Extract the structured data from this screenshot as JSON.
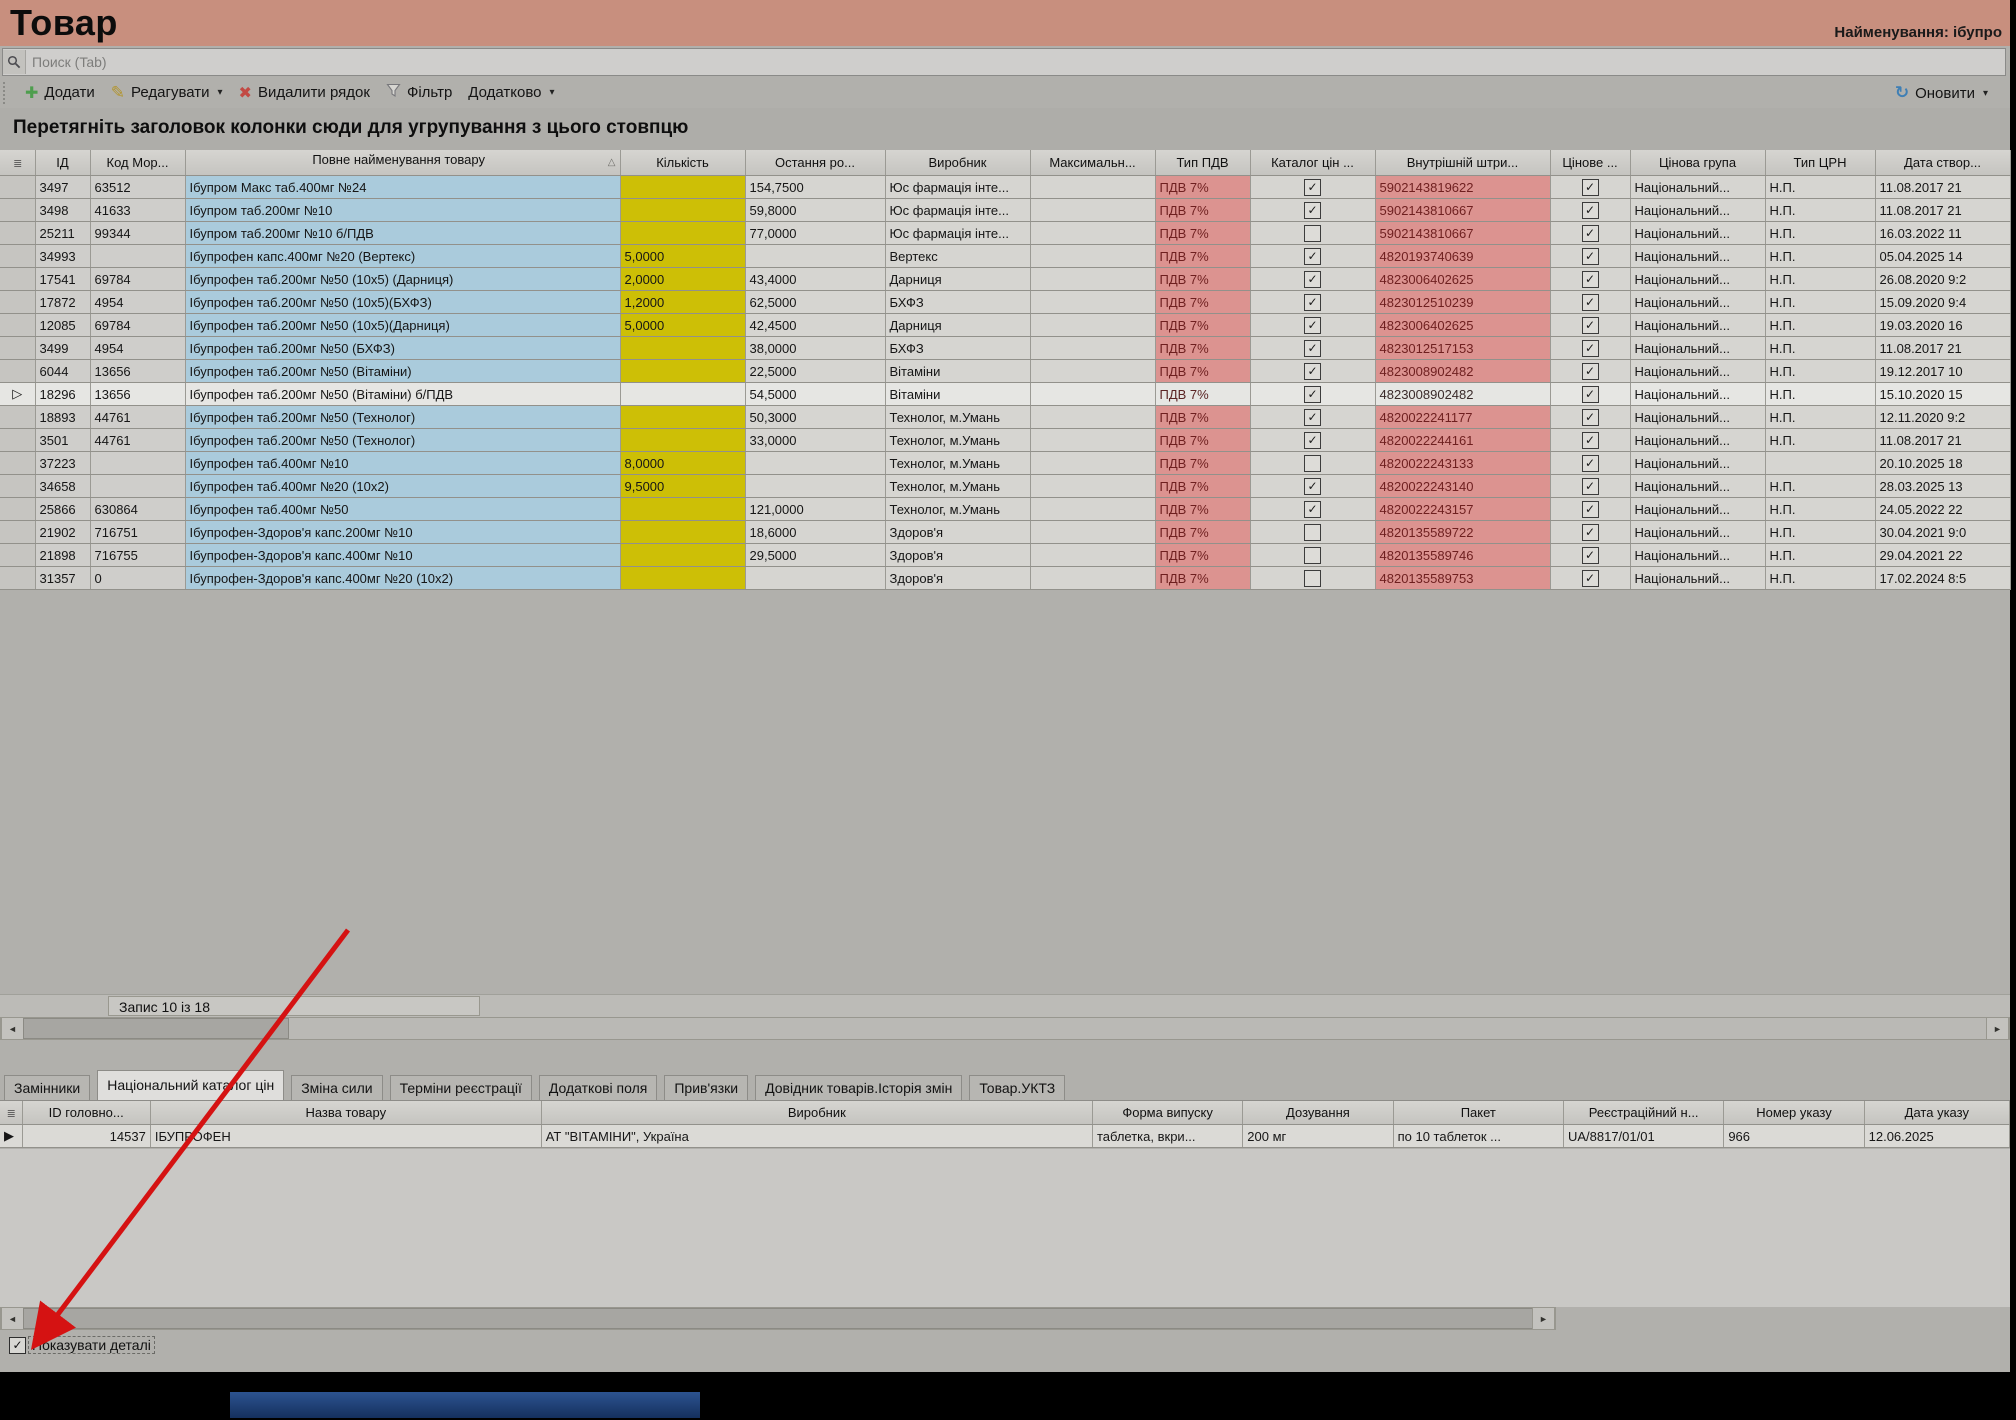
{
  "window": {
    "title": "Товар",
    "name_filter_label": "Найменування: ібупро"
  },
  "search": {
    "placeholder": "Поиск (Tab)"
  },
  "toolbar": {
    "add": "Додати",
    "edit": "Редагувати",
    "delete_row": "Видалити рядок",
    "filter": "Фільтр",
    "more": "Додатково",
    "refresh": "Оновити"
  },
  "group_hint": "Перетягніть заголовок колонки сюди для угрупування з цього стовпцю",
  "main_grid": {
    "columns": [
      "ІД",
      "Код Мор...",
      "Повне найменування товару",
      "Кількість",
      "Остання ро...",
      "Виробник",
      "Максимальн...",
      "Тип ПДВ",
      "Каталог цін ...",
      "Внутрішній штри...",
      "Цінове ...",
      "Цінова група",
      "Тип ЦРН",
      "Дата створ..."
    ],
    "rows": [
      {
        "id": "3497",
        "code": "63512",
        "name": "Ібупром Макс таб.400мг №24",
        "qty": "",
        "last_price": "154,7500",
        "maker": "Юс фармація інте...",
        "max": "",
        "vat": "ПДВ 7%",
        "catalog": true,
        "barcode": "5902143819622",
        "price_flag": true,
        "price_group": "Національний...",
        "crn_type": "Н.П.",
        "created": "11.08.2017 21",
        "selected": false
      },
      {
        "id": "3498",
        "code": "41633",
        "name": "Ібупром таб.200мг №10",
        "qty": "",
        "last_price": "59,8000",
        "maker": "Юс фармація інте...",
        "max": "",
        "vat": "ПДВ 7%",
        "catalog": true,
        "barcode": "5902143810667",
        "price_flag": true,
        "price_group": "Національний...",
        "crn_type": "Н.П.",
        "created": "11.08.2017 21",
        "selected": false
      },
      {
        "id": "25211",
        "code": "99344",
        "name": "Ібупром таб.200мг №10  б/ПДВ",
        "qty": "",
        "last_price": "77,0000",
        "maker": "Юс фармація інте...",
        "max": "",
        "vat": "ПДВ 7%",
        "catalog": false,
        "barcode": "5902143810667",
        "price_flag": true,
        "price_group": "Національний...",
        "crn_type": "Н.П.",
        "created": "16.03.2022 11",
        "selected": false
      },
      {
        "id": "34993",
        "code": "",
        "name": "Ібупрофен капс.400мг №20 (Вертекс)",
        "qty": "5,0000",
        "last_price": "",
        "maker": "Вертекс",
        "max": "",
        "vat": "ПДВ 7%",
        "catalog": true,
        "barcode": "4820193740639",
        "price_flag": true,
        "price_group": "Національний...",
        "crn_type": "Н.П.",
        "created": "05.04.2025 14",
        "selected": false
      },
      {
        "id": "17541",
        "code": "69784",
        "name": "Ібупрофен таб.200мг №50 (10х5) (Дарниця)",
        "qty": "2,0000",
        "last_price": "43,4000",
        "maker": "Дарниця",
        "max": "",
        "vat": "ПДВ 7%",
        "catalog": true,
        "barcode": "4823006402625",
        "price_flag": true,
        "price_group": "Національний...",
        "crn_type": "Н.П.",
        "created": "26.08.2020 9:2",
        "selected": false
      },
      {
        "id": "17872",
        "code": "4954",
        "name": "Ібупрофен таб.200мг №50 (10х5)(БХФЗ)",
        "qty": "1,2000",
        "last_price": "62,5000",
        "maker": "БХФЗ",
        "max": "",
        "vat": "ПДВ 7%",
        "catalog": true,
        "barcode": "4823012510239",
        "price_flag": true,
        "price_group": "Національний...",
        "crn_type": "Н.П.",
        "created": "15.09.2020 9:4",
        "selected": false
      },
      {
        "id": "12085",
        "code": "69784",
        "name": "Ібупрофен таб.200мг №50 (10х5)(Дарниця)",
        "qty": "5,0000",
        "last_price": "42,4500",
        "maker": "Дарниця",
        "max": "",
        "vat": "ПДВ 7%",
        "catalog": true,
        "barcode": "4823006402625",
        "price_flag": true,
        "price_group": "Національний...",
        "crn_type": "Н.П.",
        "created": "19.03.2020 16",
        "selected": false
      },
      {
        "id": "3499",
        "code": "4954",
        "name": "Ібупрофен таб.200мг №50 (БХФЗ)",
        "qty": "",
        "last_price": "38,0000",
        "maker": "БХФЗ",
        "max": "",
        "vat": "ПДВ 7%",
        "catalog": true,
        "barcode": "4823012517153",
        "price_flag": true,
        "price_group": "Національний...",
        "crn_type": "Н.П.",
        "created": "11.08.2017 21",
        "selected": false
      },
      {
        "id": "6044",
        "code": "13656",
        "name": "Ібупрофен таб.200мг №50 (Вітаміни)",
        "qty": "",
        "last_price": "22,5000",
        "maker": "Вітаміни",
        "max": "",
        "vat": "ПДВ 7%",
        "catalog": true,
        "barcode": "4823008902482",
        "price_flag": true,
        "price_group": "Національний...",
        "crn_type": "Н.П.",
        "created": "19.12.2017 10",
        "selected": false
      },
      {
        "id": "18296",
        "code": "13656",
        "name": "Ібупрофен таб.200мг №50 (Вітаміни) б/ПДВ",
        "qty": "",
        "last_price": "54,5000",
        "maker": "Вітаміни",
        "max": "",
        "vat": "ПДВ 7%",
        "catalog": true,
        "barcode": "4823008902482",
        "price_flag": true,
        "price_group": "Національний...",
        "crn_type": "Н.П.",
        "created": "15.10.2020 15",
        "selected": true
      },
      {
        "id": "18893",
        "code": "44761",
        "name": "Ібупрофен таб.200мг №50 (Технолог)",
        "qty": "",
        "last_price": "50,3000",
        "maker": "Технолог, м.Умань",
        "max": "",
        "vat": "ПДВ 7%",
        "catalog": true,
        "barcode": "4820022241177",
        "price_flag": true,
        "price_group": "Національний...",
        "crn_type": "Н.П.",
        "created": "12.11.2020 9:2",
        "selected": false
      },
      {
        "id": "3501",
        "code": "44761",
        "name": "Ібупрофен таб.200мг №50 (Технолог)",
        "qty": "",
        "last_price": "33,0000",
        "maker": "Технолог, м.Умань",
        "max": "",
        "vat": "ПДВ 7%",
        "catalog": true,
        "barcode": "4820022244161",
        "price_flag": true,
        "price_group": "Національний...",
        "crn_type": "Н.П.",
        "created": "11.08.2017 21",
        "selected": false
      },
      {
        "id": "37223",
        "code": "",
        "name": "Ібупрофен таб.400мг №10",
        "qty": "8,0000",
        "last_price": "",
        "maker": "Технолог, м.Умань",
        "max": "",
        "vat": "ПДВ 7%",
        "catalog": false,
        "barcode": "4820022243133",
        "price_flag": true,
        "price_group": "Національний...",
        "crn_type": "",
        "created": "20.10.2025 18",
        "selected": false
      },
      {
        "id": "34658",
        "code": "",
        "name": "Ібупрофен таб.400мг №20 (10х2)",
        "qty": "9,5000",
        "last_price": "",
        "maker": "Технолог, м.Умань",
        "max": "",
        "vat": "ПДВ 7%",
        "catalog": true,
        "barcode": "4820022243140",
        "price_flag": true,
        "price_group": "Національний...",
        "crn_type": "Н.П.",
        "created": "28.03.2025 13",
        "selected": false
      },
      {
        "id": "25866",
        "code": "630864",
        "name": "Ібупрофен таб.400мг №50",
        "qty": "",
        "last_price": "121,0000",
        "maker": "Технолог, м.Умань",
        "max": "",
        "vat": "ПДВ 7%",
        "catalog": true,
        "barcode": "4820022243157",
        "price_flag": true,
        "price_group": "Національний...",
        "crn_type": "Н.П.",
        "created": "24.05.2022 22",
        "selected": false
      },
      {
        "id": "21902",
        "code": "716751",
        "name": "Ібупрофен-Здоров'я капс.200мг №10",
        "qty": "",
        "last_price": "18,6000",
        "maker": "Здоров'я",
        "max": "",
        "vat": "ПДВ 7%",
        "catalog": false,
        "barcode": "4820135589722",
        "price_flag": true,
        "price_group": "Національний...",
        "crn_type": "Н.П.",
        "created": "30.04.2021 9:0",
        "selected": false
      },
      {
        "id": "21898",
        "code": "716755",
        "name": "Ібупрофен-Здоров'я капс.400мг №10",
        "qty": "",
        "last_price": "29,5000",
        "maker": "Здоров'я",
        "max": "",
        "vat": "ПДВ 7%",
        "catalog": false,
        "barcode": "4820135589746",
        "price_flag": true,
        "price_group": "Національний...",
        "crn_type": "Н.П.",
        "created": "29.04.2021 22",
        "selected": false
      },
      {
        "id": "31357",
        "code": "0",
        "name": "Ібупрофен-Здоров'я капс.400мг №20 (10х2)",
        "qty": "",
        "last_price": "",
        "maker": "Здоров'я",
        "max": "",
        "vat": "ПДВ 7%",
        "catalog": false,
        "barcode": "4820135589753",
        "price_flag": true,
        "price_group": "Національний...",
        "crn_type": "Н.П.",
        "created": "17.02.2024 8:5",
        "selected": false
      }
    ],
    "status": "Запис 10 із 18"
  },
  "detail_tabs": [
    {
      "label": "Замінники",
      "active": false
    },
    {
      "label": "Національний каталог цін",
      "active": true
    },
    {
      "label": "Зміна сили",
      "active": false
    },
    {
      "label": "Терміни реєстрації",
      "active": false
    },
    {
      "label": "Додаткові поля",
      "active": false
    },
    {
      "label": "Прив'язки",
      "active": false
    },
    {
      "label": "Довідник товарів.Історія змін",
      "active": false
    },
    {
      "label": "Товар.УКТЗ",
      "active": false
    }
  ],
  "detail_grid": {
    "columns": [
      "ID головно...",
      "Назва товару",
      "Виробник",
      "Форма випуску",
      "Дозування",
      "Пакет",
      "Реєстраційний н...",
      "Номер указу",
      "Дата указу"
    ],
    "rows": [
      {
        "id": "14537",
        "name": "ІБУПРОФЕН",
        "maker": "АТ \"ВІТАМІНИ\", Україна",
        "form": "таблетка, вкри...",
        "dose": "200 мг",
        "pack": "по 10 таблеток ...",
        "reg_number": "UA/8817/01/01",
        "decree_number": "966",
        "decree_date": "12.06.2025"
      }
    ]
  },
  "footer": {
    "show_details_label": "Показувати деталі",
    "checked": true
  },
  "colors": {
    "header_bg": "#c88f7e",
    "qty_col": "#cdbf06",
    "name_col": "#aacbdc",
    "vat_col": "#dc9390",
    "vat_text": "#6e1f1f",
    "selected_row": "#e6e6e3",
    "arrow": "#d51212"
  }
}
